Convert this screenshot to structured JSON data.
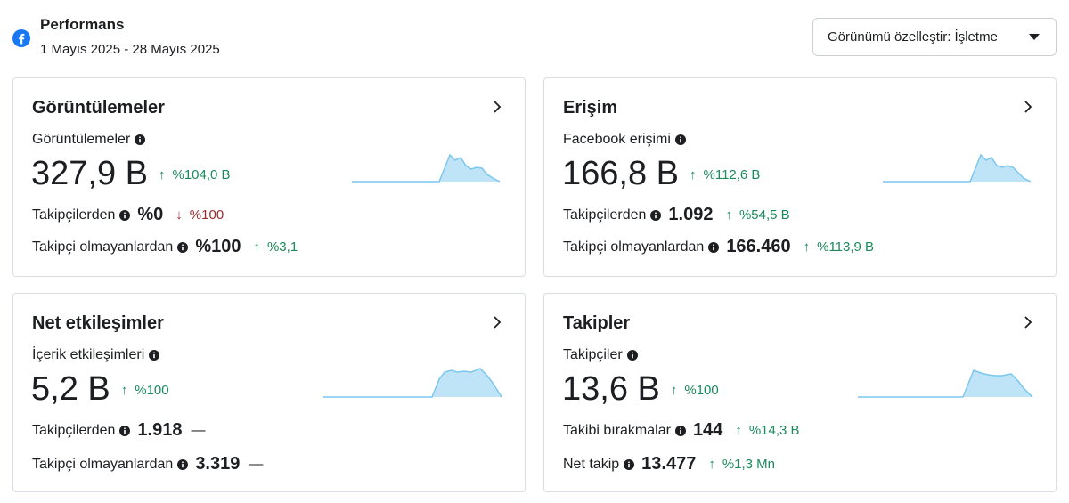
{
  "header": {
    "title": "Performans",
    "date_range": "1 Mayıs 2025 - 28 Mayıs 2025",
    "icon": "facebook-icon",
    "customize_label": "Görünümü özelleştir: İşletme"
  },
  "colors": {
    "positive": "#1a8a5a",
    "negative": "#9b2c2c",
    "spark_fill": "#bfe3f7",
    "spark_line": "#7cc7ee",
    "facebook_blue": "#1877f2"
  },
  "cards": [
    {
      "title": "Görüntülemeler",
      "sub_label": "Görüntülemeler",
      "value": "327,9 B",
      "change": "%104,0 B",
      "change_direction": "up",
      "rows": [
        {
          "label": "Takipçilerden",
          "value": "%0",
          "change": "%100",
          "direction": "down"
        },
        {
          "label": "Takipçi olmayanlardan",
          "value": "%100",
          "change": "%3,1",
          "direction": "up"
        }
      ]
    },
    {
      "title": "Erişim",
      "sub_label": "Facebook erişimi",
      "value": "166,8 B",
      "change": "%112,6 B",
      "change_direction": "up",
      "rows": [
        {
          "label": "Takipçilerden",
          "value": "1.092",
          "change": "%54,5 B",
          "direction": "up"
        },
        {
          "label": "Takipçi olmayanlardan",
          "value": "166.460",
          "change": "%113,9 B",
          "direction": "up"
        }
      ]
    },
    {
      "title": "Net etkileşimler",
      "sub_label": "İçerik etkileşimleri",
      "value": "5,2 B",
      "change": "%100",
      "change_direction": "up",
      "rows": [
        {
          "label": "Takipçilerden",
          "value": "1.918",
          "change": "—",
          "direction": "none"
        },
        {
          "label": "Takipçi olmayanlardan",
          "value": "3.319",
          "change": "—",
          "direction": "none"
        }
      ]
    },
    {
      "title": "Takipler",
      "sub_label": "Takipçiler",
      "value": "13,6 B",
      "change": "%100",
      "change_direction": "up",
      "rows": [
        {
          "label": "Takibi bırakmalar",
          "value": "144",
          "change": "%14,3 B",
          "direction": "up"
        },
        {
          "label": "Net takip",
          "value": "13.477",
          "change": "%1,3 Mn",
          "direction": "up"
        }
      ]
    }
  ]
}
